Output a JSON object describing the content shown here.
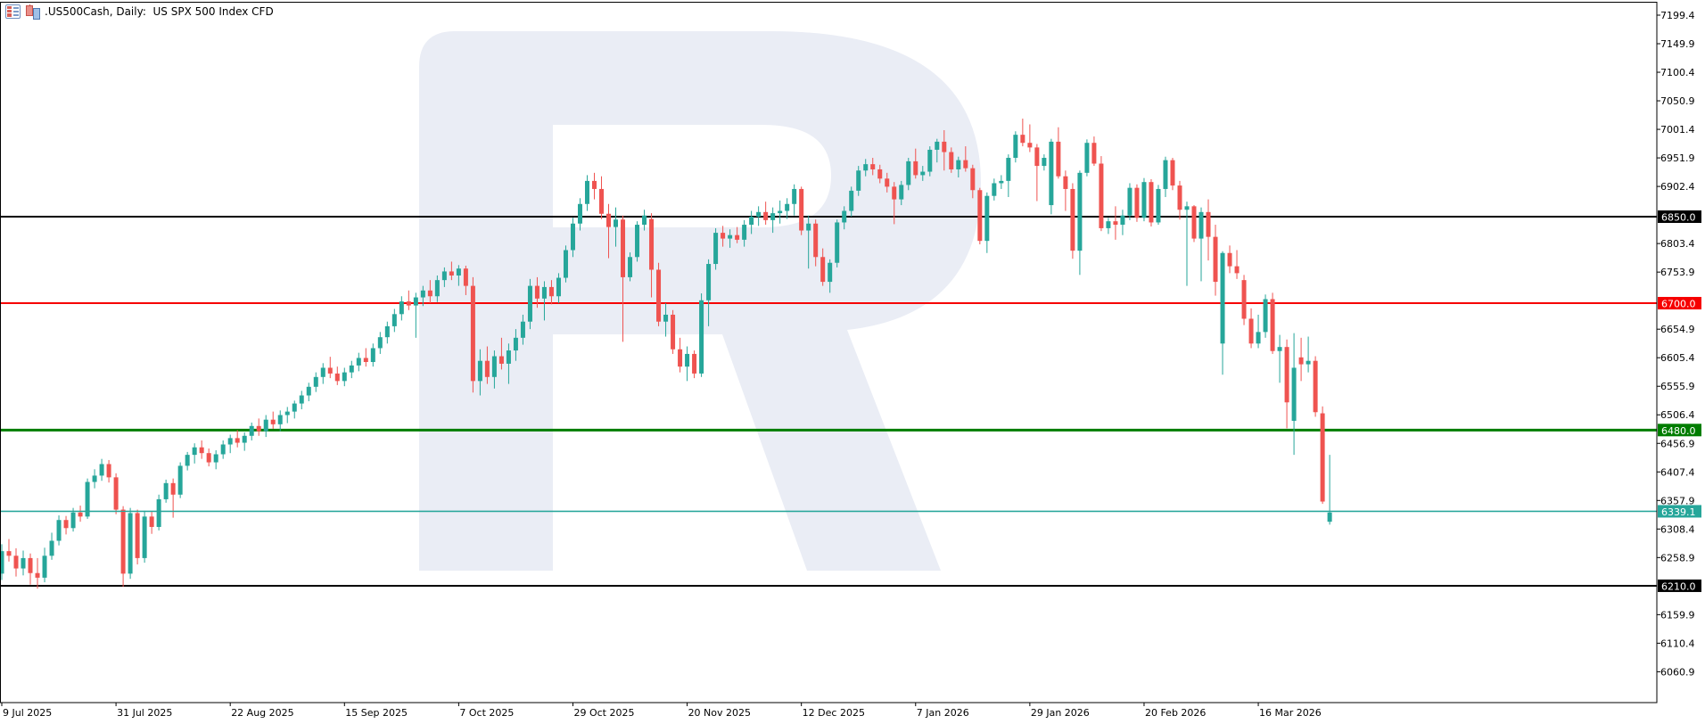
{
  "header": {
    "symbol_title": ".US500Cash, Daily:  US SPX 500 Index CFD",
    "icons": [
      {
        "name": "charts-list-icon"
      },
      {
        "name": "bar-chart-icon"
      }
    ]
  },
  "colors": {
    "background": "#ffffff",
    "up_candle": "#26a69a",
    "down_candle": "#ef5350",
    "watermark": "#eaedf5",
    "axis_text": "#000000",
    "frame": "#000000",
    "level_black": "#000000",
    "level_red": "#f60000",
    "level_green": "#007d00",
    "bid_teal": "#26a69a"
  },
  "chart_data": {
    "type": "candlestick",
    "title": ".US500Cash, Daily:  US SPX 500 Index CFD",
    "symbol": ".US500Cash",
    "timeframe": "Daily",
    "description": "US SPX 500 Index CFD",
    "legend_position": "none",
    "grid": false,
    "axis": {
      "top_price": 7219.5,
      "bottom_price": 6007.4,
      "tick_labels": [
        7199.4,
        7149.9,
        7100.4,
        7050.9,
        7001.4,
        6951.9,
        6902.4,
        6803.4,
        6753.9,
        6654.9,
        6605.4,
        6555.9,
        6506.4,
        6456.9,
        6407.4,
        6357.9,
        6308.4,
        6258.9,
        6159.9,
        6110.4,
        6060.9
      ]
    },
    "x_ticks": [
      {
        "bar": 0,
        "label": "9 Jul 2025"
      },
      {
        "bar": 16,
        "label": "31 Jul 2025"
      },
      {
        "bar": 32,
        "label": "22 Aug 2025"
      },
      {
        "bar": 48,
        "label": "15 Sep 2025"
      },
      {
        "bar": 64,
        "label": "7 Oct 2025"
      },
      {
        "bar": 80,
        "label": "29 Oct 2025"
      },
      {
        "bar": 96,
        "label": "20 Nov 2025"
      },
      {
        "bar": 112,
        "label": "12 Dec 2025"
      },
      {
        "bar": 128,
        "label": "7 Jan 2026"
      },
      {
        "bar": 144,
        "label": "29 Jan 2026"
      },
      {
        "bar": 160,
        "label": "20 Feb 2026"
      },
      {
        "bar": 176,
        "label": "16 Mar 2026"
      }
    ],
    "price_lines": [
      {
        "price": 6850.0,
        "label": "6850.0",
        "color": "#000000",
        "width": 2,
        "role": "resistance-level"
      },
      {
        "price": 6700.0,
        "label": "6700.0",
        "color": "#f60000",
        "width": 2,
        "role": "resistance-level"
      },
      {
        "price": 6480.0,
        "label": "6480.0",
        "color": "#007d00",
        "width": 3,
        "role": "support-level"
      },
      {
        "price": 6339.1,
        "label": "6339.1",
        "color": "#26a69a",
        "width": 1.5,
        "role": "current-bid-line"
      },
      {
        "price": 6210.0,
        "label": "6210.0",
        "color": "#000000",
        "width": 2,
        "role": "support-level"
      }
    ],
    "current_bid": 6339.1,
    "candles_format": [
      "open",
      "high",
      "low",
      "close"
    ],
    "candles": [
      [
        6231,
        6282,
        6220,
        6270
      ],
      [
        6270,
        6291,
        6252,
        6262
      ],
      [
        6262,
        6275,
        6226,
        6240
      ],
      [
        6240,
        6271,
        6228,
        6258
      ],
      [
        6258,
        6266,
        6212,
        6232
      ],
      [
        6232,
        6258,
        6205,
        6224
      ],
      [
        6224,
        6276,
        6216,
        6262
      ],
      [
        6262,
        6302,
        6255,
        6288
      ],
      [
        6288,
        6332,
        6280,
        6324
      ],
      [
        6324,
        6331,
        6299,
        6310
      ],
      [
        6310,
        6345,
        6304,
        6337
      ],
      [
        6337,
        6349,
        6321,
        6330
      ],
      [
        6330,
        6396,
        6326,
        6390
      ],
      [
        6390,
        6412,
        6379,
        6401
      ],
      [
        6401,
        6430,
        6392,
        6421
      ],
      [
        6421,
        6428,
        6389,
        6398
      ],
      [
        6398,
        6405,
        6334,
        6342
      ],
      [
        6342,
        6348,
        6208,
        6231
      ],
      [
        6231,
        6345,
        6222,
        6336
      ],
      [
        6336,
        6342,
        6247,
        6258
      ],
      [
        6258,
        6340,
        6250,
        6330
      ],
      [
        6330,
        6338,
        6300,
        6312
      ],
      [
        6312,
        6368,
        6306,
        6360
      ],
      [
        6360,
        6394,
        6354,
        6388
      ],
      [
        6388,
        6396,
        6328,
        6368
      ],
      [
        6368,
        6424,
        6362,
        6418
      ],
      [
        6418,
        6442,
        6410,
        6437
      ],
      [
        6437,
        6457,
        6422,
        6450
      ],
      [
        6450,
        6462,
        6430,
        6440
      ],
      [
        6440,
        6448,
        6417,
        6424
      ],
      [
        6424,
        6445,
        6412,
        6438
      ],
      [
        6438,
        6462,
        6430,
        6455
      ],
      [
        6455,
        6472,
        6440,
        6466
      ],
      [
        6466,
        6480,
        6450,
        6458
      ],
      [
        6458,
        6476,
        6444,
        6470
      ],
      [
        6470,
        6493,
        6462,
        6487
      ],
      [
        6487,
        6500,
        6470,
        6478
      ],
      [
        6478,
        6506,
        6468,
        6498
      ],
      [
        6498,
        6512,
        6482,
        6490
      ],
      [
        6490,
        6514,
        6478,
        6506
      ],
      [
        6506,
        6520,
        6492,
        6512
      ],
      [
        6512,
        6531,
        6500,
        6526
      ],
      [
        6526,
        6548,
        6516,
        6540
      ],
      [
        6540,
        6562,
        6530,
        6555
      ],
      [
        6555,
        6580,
        6546,
        6572
      ],
      [
        6572,
        6596,
        6560,
        6588
      ],
      [
        6588,
        6607,
        6570,
        6578
      ],
      [
        6578,
        6590,
        6558,
        6565
      ],
      [
        6565,
        6588,
        6556,
        6580
      ],
      [
        6580,
        6600,
        6570,
        6592
      ],
      [
        6592,
        6614,
        6582,
        6605
      ],
      [
        6605,
        6622,
        6590,
        6598
      ],
      [
        6598,
        6630,
        6590,
        6622
      ],
      [
        6622,
        6650,
        6612,
        6641
      ],
      [
        6641,
        6668,
        6630,
        6660
      ],
      [
        6660,
        6690,
        6650,
        6681
      ],
      [
        6681,
        6712,
        6670,
        6703
      ],
      [
        6703,
        6722,
        6688,
        6696
      ],
      [
        6696,
        6718,
        6640,
        6710
      ],
      [
        6710,
        6730,
        6695,
        6722
      ],
      [
        6722,
        6740,
        6700,
        6712
      ],
      [
        6712,
        6748,
        6702,
        6740
      ],
      [
        6740,
        6762,
        6728,
        6755
      ],
      [
        6755,
        6772,
        6740,
        6748
      ],
      [
        6748,
        6766,
        6730,
        6760
      ],
      [
        6760,
        6765,
        6714,
        6730
      ],
      [
        6730,
        6745,
        6545,
        6565
      ],
      [
        6565,
        6620,
        6540,
        6600
      ],
      [
        6600,
        6625,
        6560,
        6572
      ],
      [
        6572,
        6618,
        6552,
        6608
      ],
      [
        6608,
        6640,
        6585,
        6595
      ],
      [
        6595,
        6630,
        6560,
        6618
      ],
      [
        6618,
        6655,
        6600,
        6640
      ],
      [
        6640,
        6680,
        6628,
        6668
      ],
      [
        6668,
        6742,
        6655,
        6730
      ],
      [
        6730,
        6745,
        6692,
        6708
      ],
      [
        6708,
        6738,
        6670,
        6728
      ],
      [
        6728,
        6740,
        6698,
        6712
      ],
      [
        6712,
        6752,
        6700,
        6744
      ],
      [
        6744,
        6800,
        6736,
        6792
      ],
      [
        6792,
        6848,
        6780,
        6838
      ],
      [
        6838,
        6882,
        6826,
        6872
      ],
      [
        6872,
        6922,
        6860,
        6912
      ],
      [
        6912,
        6926,
        6880,
        6898
      ],
      [
        6898,
        6920,
        6846,
        6855
      ],
      [
        6855,
        6872,
        6778,
        6832
      ],
      [
        6832,
        6866,
        6798,
        6845
      ],
      [
        6845,
        6852,
        6633,
        6745
      ],
      [
        6745,
        6788,
        6738,
        6780
      ],
      [
        6780,
        6842,
        6772,
        6836
      ],
      [
        6836,
        6862,
        6826,
        6852
      ],
      [
        6846,
        6856,
        6710,
        6758
      ],
      [
        6758,
        6770,
        6660,
        6668
      ],
      [
        6668,
        6700,
        6642,
        6680
      ],
      [
        6680,
        6688,
        6612,
        6620
      ],
      [
        6620,
        6640,
        6580,
        6590
      ],
      [
        6590,
        6625,
        6565,
        6612
      ],
      [
        6612,
        6618,
        6570,
        6578
      ],
      [
        6578,
        6717,
        6572,
        6705
      ],
      [
        6705,
        6776,
        6660,
        6768
      ],
      [
        6768,
        6830,
        6758,
        6822
      ],
      [
        6822,
        6834,
        6798,
        6812
      ],
      [
        6812,
        6828,
        6796,
        6818
      ],
      [
        6818,
        6832,
        6804,
        6810
      ],
      [
        6810,
        6844,
        6798,
        6836
      ],
      [
        6836,
        6860,
        6820,
        6850
      ],
      [
        6850,
        6868,
        6834,
        6858
      ],
      [
        6858,
        6876,
        6836,
        6844
      ],
      [
        6844,
        6866,
        6822,
        6856
      ],
      [
        6856,
        6878,
        6838,
        6860
      ],
      [
        6860,
        6882,
        6846,
        6872
      ],
      [
        6872,
        6906,
        6852,
        6898
      ],
      [
        6898,
        6902,
        6818,
        6826
      ],
      [
        6826,
        6852,
        6760,
        6838
      ],
      [
        6838,
        6845,
        6764,
        6780
      ],
      [
        6780,
        6795,
        6730,
        6737
      ],
      [
        6737,
        6776,
        6718,
        6770
      ],
      [
        6770,
        6845,
        6762,
        6840
      ],
      [
        6840,
        6868,
        6828,
        6860
      ],
      [
        6860,
        6902,
        6850,
        6895
      ],
      [
        6895,
        6938,
        6886,
        6930
      ],
      [
        6930,
        6950,
        6920,
        6941
      ],
      [
        6941,
        6952,
        6922,
        6932
      ],
      [
        6932,
        6940,
        6908,
        6916
      ],
      [
        6916,
        6926,
        6892,
        6902
      ],
      [
        6902,
        6910,
        6837,
        6880
      ],
      [
        6880,
        6912,
        6870,
        6905
      ],
      [
        6905,
        6952,
        6896,
        6946
      ],
      [
        6946,
        6968,
        6916,
        6922
      ],
      [
        6922,
        6938,
        6912,
        6928
      ],
      [
        6928,
        6972,
        6920,
        6966
      ],
      [
        6966,
        6985,
        6944,
        6980
      ],
      [
        6980,
        7000,
        6930,
        6962
      ],
      [
        6962,
        6970,
        6926,
        6932
      ],
      [
        6932,
        6954,
        6918,
        6948
      ],
      [
        6948,
        6972,
        6928,
        6934
      ],
      [
        6934,
        6940,
        6882,
        6896
      ],
      [
        6896,
        6900,
        6802,
        6808
      ],
      [
        6808,
        6892,
        6787,
        6886
      ],
      [
        6886,
        6916,
        6878,
        6908
      ],
      [
        6908,
        6922,
        6898,
        6912
      ],
      [
        6912,
        6958,
        6884,
        6952
      ],
      [
        6952,
        6998,
        6944,
        6992
      ],
      [
        6992,
        7020,
        6972,
        6978
      ],
      [
        6978,
        7010,
        6962,
        6970
      ],
      [
        6970,
        6976,
        6877,
        6938
      ],
      [
        6938,
        6958,
        6930,
        6952
      ],
      [
        6870,
        6985,
        6854,
        6980
      ],
      [
        6980,
        7005,
        6916,
        6920
      ],
      [
        6920,
        6930,
        6860,
        6898
      ],
      [
        6898,
        6908,
        6777,
        6791
      ],
      [
        6791,
        6930,
        6749,
        6926
      ],
      [
        6926,
        6984,
        6920,
        6978
      ],
      [
        6978,
        6989,
        6938,
        6942
      ],
      [
        6942,
        6955,
        6825,
        6830
      ],
      [
        6830,
        6848,
        6820,
        6842
      ],
      [
        6842,
        6868,
        6810,
        6836
      ],
      [
        6836,
        6862,
        6818,
        6852
      ],
      [
        6852,
        6908,
        6844,
        6900
      ],
      [
        6900,
        6906,
        6841,
        6848
      ],
      [
        6848,
        6917,
        6842,
        6910
      ],
      [
        6910,
        6915,
        6833,
        6840
      ],
      [
        6840,
        6905,
        6836,
        6898
      ],
      [
        6898,
        6954,
        6884,
        6948
      ],
      [
        6948,
        6952,
        6896,
        6904
      ],
      [
        6904,
        6912,
        6845,
        6862
      ],
      [
        6862,
        6876,
        6730,
        6868
      ],
      [
        6868,
        6870,
        6806,
        6812
      ],
      [
        6812,
        6866,
        6738,
        6858
      ],
      [
        6858,
        6880,
        6774,
        6815
      ],
      [
        6815,
        6836,
        6713,
        6737
      ],
      [
        6630,
        6790,
        6576,
        6787
      ],
      [
        6787,
        6800,
        6752,
        6764
      ],
      [
        6764,
        6792,
        6742,
        6752
      ],
      [
        6740,
        6749,
        6662,
        6673
      ],
      [
        6673,
        6691,
        6622,
        6630
      ],
      [
        6630,
        6680,
        6622,
        6650
      ],
      [
        6650,
        6715,
        6640,
        6707
      ],
      [
        6707,
        6718,
        6612,
        6617
      ],
      [
        6617,
        6645,
        6562,
        6624
      ],
      [
        6624,
        6637,
        6483,
        6528
      ],
      [
        6496,
        6648,
        6437,
        6588
      ],
      [
        6606,
        6640,
        6565,
        6594
      ],
      [
        6594,
        6642,
        6580,
        6600
      ],
      [
        6600,
        6608,
        6503,
        6511
      ],
      [
        6509,
        6521,
        6352,
        6356
      ],
      [
        6321,
        6437,
        6316,
        6337
      ]
    ]
  }
}
